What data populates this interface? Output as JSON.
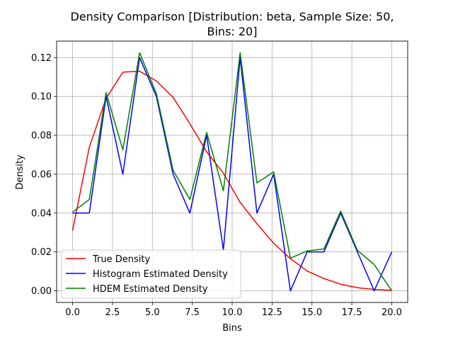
{
  "chart_data": {
    "type": "line",
    "title_lines": [
      "Density Comparison [Distribution: beta, Sample Size: 50,",
      "Bins: 20]"
    ],
    "xlabel": "Bins",
    "ylabel": "Density",
    "xlim": [
      -1.0,
      21.0
    ],
    "ylim": [
      -0.006,
      0.1285
    ],
    "xticks": [
      0.0,
      2.5,
      5.0,
      7.5,
      10.0,
      12.5,
      15.0,
      17.5,
      20.0
    ],
    "xtick_labels": [
      "0.0",
      "2.5",
      "5.0",
      "7.5",
      "10.0",
      "12.5",
      "15.0",
      "17.5",
      "20.0"
    ],
    "yticks": [
      0.0,
      0.02,
      0.04,
      0.06,
      0.08,
      0.1,
      0.12
    ],
    "ytick_labels": [
      "0.00",
      "0.02",
      "0.04",
      "0.06",
      "0.08",
      "0.10",
      "0.12"
    ],
    "grid": true,
    "legend_position": "lower-left",
    "x": [
      0.0,
      1.05,
      2.1,
      3.15,
      4.2,
      5.25,
      6.3,
      7.35,
      8.4,
      9.45,
      10.5,
      11.55,
      12.6,
      13.65,
      14.7,
      15.75,
      16.8,
      17.85,
      18.9,
      20.0
    ],
    "series": [
      {
        "name": "True Density",
        "color": "#ff0000",
        "values": [
          0.031,
          0.074,
          0.099,
          0.1125,
          0.113,
          0.108,
          0.0995,
          0.086,
          0.0715,
          0.0605,
          0.0455,
          0.0345,
          0.0245,
          0.0165,
          0.0102,
          0.0063,
          0.0034,
          0.0016,
          0.0007,
          0.0002
        ]
      },
      {
        "name": "Histogram Estimated Density",
        "color": "#0000ff",
        "values": [
          0.04,
          0.04,
          0.1,
          0.06,
          0.12,
          0.1,
          0.06,
          0.04,
          0.08,
          0.021,
          0.12,
          0.04,
          0.06,
          0.0,
          0.02,
          0.02,
          0.04,
          0.02,
          0.0,
          0.02
        ]
      },
      {
        "name": "HDEM Estimated Density",
        "color": "#008000",
        "values": [
          0.0405,
          0.047,
          0.102,
          0.0725,
          0.1225,
          0.1015,
          0.062,
          0.047,
          0.0815,
          0.0515,
          0.1225,
          0.0555,
          0.0612,
          0.0168,
          0.0205,
          0.0215,
          0.041,
          0.0208,
          0.0135,
          0.0
        ]
      }
    ]
  }
}
